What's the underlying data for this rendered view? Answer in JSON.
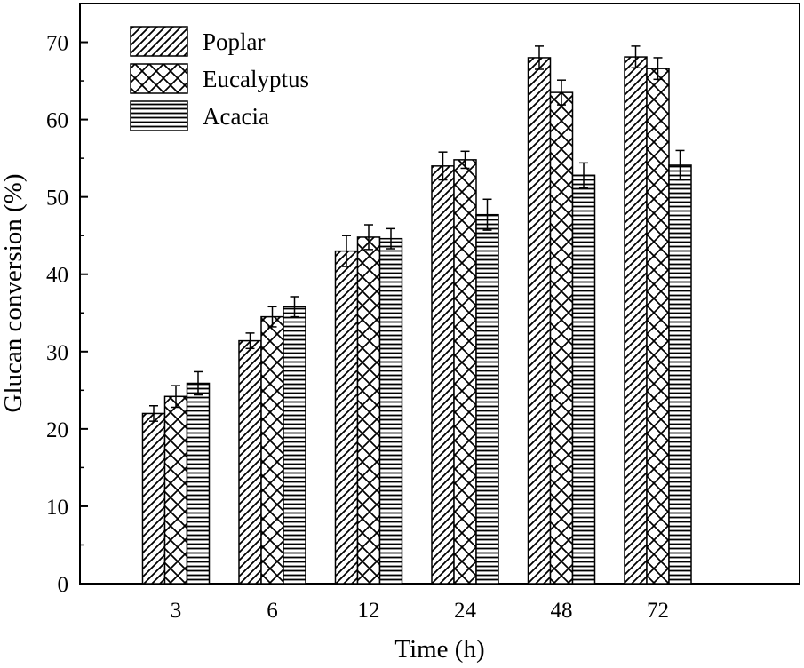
{
  "chart_data": {
    "type": "bar",
    "title": "",
    "xlabel": "Time (h)",
    "ylabel": "Glucan conversion (%)",
    "categories": [
      "3",
      "6",
      "12",
      "24",
      "48",
      "72"
    ],
    "ylim": [
      0,
      75
    ],
    "yticks": [
      0,
      10,
      20,
      30,
      40,
      50,
      60,
      70
    ],
    "yticklabels": [
      "0",
      "10",
      "20",
      "30",
      "40",
      "50",
      "60",
      "70"
    ],
    "legend_position": "top-left",
    "series": [
      {
        "name": "Poplar",
        "pattern": "diagonal-hatch",
        "values": [
          22.0,
          31.4,
          43.0,
          54.0,
          68.0,
          68.1
        ],
        "errors": [
          1.0,
          1.0,
          2.0,
          1.8,
          1.5,
          1.4
        ]
      },
      {
        "name": "Eucalyptus",
        "pattern": "cross-hatch",
        "values": [
          24.2,
          34.5,
          44.8,
          54.8,
          63.5,
          66.6
        ],
        "errors": [
          1.4,
          1.3,
          1.6,
          1.1,
          1.6,
          1.4
        ]
      },
      {
        "name": "Acacia",
        "pattern": "horizontal-lines",
        "values": [
          25.9,
          35.8,
          44.6,
          47.7,
          52.8,
          54.1
        ],
        "errors": [
          1.5,
          1.3,
          1.3,
          2.0,
          1.6,
          1.9
        ]
      }
    ]
  }
}
